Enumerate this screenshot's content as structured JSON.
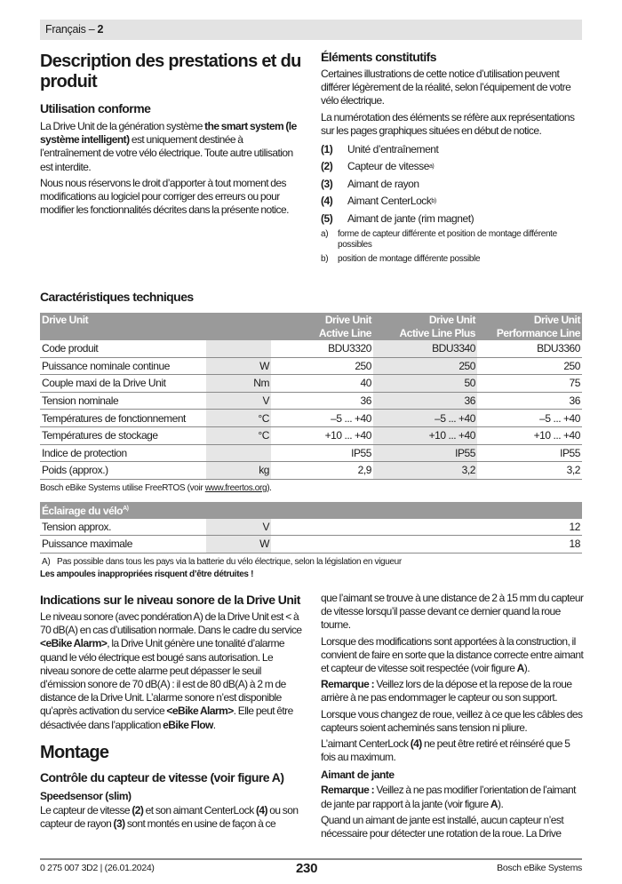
{
  "header": {
    "label": "Français – ",
    "page": "2"
  },
  "left_top": {
    "title": "Description des prestations et du produit",
    "usage_title": "Utilisation conforme",
    "usage_p1": [
      {
        "t": "La Drive Unit de la génération système "
      },
      {
        "t": "the smart system (le système intelligent)",
        "b": true
      },
      {
        "t": " est uniquement destinée à l’entraînement de votre vélo électrique. Toute autre utilisation est interdite."
      }
    ],
    "usage_p2": [
      {
        "t": "Nous nous réservons le droit d’apporter à tout moment des modifications au logiciel pour corriger des erreurs ou pour modifier les fonctionnalités décrites dans la présente notice."
      }
    ]
  },
  "right_top": {
    "title": "Éléments constitutifs",
    "p1": "Certaines illustrations de cette notice d’utilisation peuvent différer légèrement de la réalité, selon l’équipement de votre vélo électrique.",
    "p2": "La numérotation des éléments se réfère aux représentations sur les pages graphiques situées en début de notice.",
    "items": [
      {
        "num": "(1)",
        "label": "Unité d’entraînement",
        "sup": ""
      },
      {
        "num": "(2)",
        "label": "Capteur de vitesse ",
        "sup": "a)"
      },
      {
        "num": "(3)",
        "label": "Aimant de rayon",
        "sup": ""
      },
      {
        "num": "(4)",
        "label": "Aimant CenterLock ",
        "sup": "b)"
      },
      {
        "num": "(5)",
        "label": "Aimant de jante (rim magnet)",
        "sup": ""
      }
    ],
    "footnotes": [
      {
        "key": "a)",
        "text": "forme de capteur différente et position de montage différente possibles"
      },
      {
        "key": "b)",
        "text": "position de montage différente possible"
      }
    ]
  },
  "specs": {
    "title": "Caractéristiques techniques",
    "header": {
      "label": "Drive Unit",
      "cols": [
        [
          "Drive Unit",
          "Active Line"
        ],
        [
          "Drive Unit",
          "Active Line Plus"
        ],
        [
          "Drive Unit",
          "Performance Line"
        ]
      ]
    },
    "rows": [
      {
        "label": "Code produit",
        "unit": "",
        "values": [
          "BDU3320",
          "BDU3340",
          "BDU3360"
        ]
      },
      {
        "label": "Puissance nominale continue",
        "unit": "W",
        "values": [
          "250",
          "250",
          "250"
        ]
      },
      {
        "label": "Couple maxi de la Drive Unit",
        "unit": "Nm",
        "values": [
          "40",
          "50",
          "75"
        ]
      },
      {
        "label": "Tension nominale",
        "unit": "V",
        "values": [
          "36",
          "36",
          "36"
        ]
      },
      {
        "label": "Températures de fonctionnement",
        "unit": "°C",
        "values": [
          "–5 ... +40",
          "–5 ... +40",
          "–5 ... +40"
        ]
      },
      {
        "label": "Températures de stockage",
        "unit": "°C",
        "values": [
          "+10 ... +40",
          "+10 ... +40",
          "+10 ... +40"
        ]
      },
      {
        "label": "Indice de protection",
        "unit": "",
        "values": [
          "IP55",
          "IP55",
          "IP55"
        ]
      },
      {
        "label": "Poids (approx.)",
        "unit": "kg",
        "values": [
          "2,9",
          "3,2",
          "3,2"
        ]
      }
    ],
    "note_prefix": "Bosch eBike Systems utilise FreeRTOS (voir ",
    "note_link": "www.freertos.org",
    "note_suffix": ").",
    "lighting": {
      "header": "Éclairage du vélo",
      "header_sup": "A)",
      "rows": [
        {
          "label": "Tension approx.",
          "unit": "V",
          "value": "12"
        },
        {
          "label": "Puissance maximale",
          "unit": "W",
          "value": "18"
        }
      ],
      "footnote_key": "A)",
      "footnote": "Pas possible dans tous les pays via la batterie du vélo électrique, selon la législation en vigueur",
      "warning": "Les ampoules inappropriées risquent d’être détruites !"
    }
  },
  "noise": {
    "title": "Indications sur le niveau sonore de la Drive Unit",
    "p": [
      {
        "t": "Le niveau sonore (avec pondération A) de la Drive Unit est < à 70 dB(A) en cas d’utilisation normale. Dans le cadre du service "
      },
      {
        "t": "<eBike Alarm>",
        "b": true
      },
      {
        "t": ", la Drive Unit génère une tonalité d’alarme quand le vélo électrique est bougé sans autorisation. Le niveau sonore de cette alarme peut dépasser le seuil d’émission sonore de 70 dB(A) : il est de 80 dB(A) à 2 m de distance de la Drive Unit. L’alarme sonore n’est disponible qu’après activation du service "
      },
      {
        "t": "<eBike Alarm>",
        "b": true
      },
      {
        "t": ". Elle peut être désactivée dans l’application "
      },
      {
        "t": "eBike Flow",
        "b": true
      },
      {
        "t": "."
      }
    ]
  },
  "montage": {
    "title": "Montage",
    "subtitle": "Contrôle du capteur de vitesse (voir figure A)",
    "sub2": "Speedsensor (slim)",
    "p1": [
      {
        "t": "Le capteur de vitesse "
      },
      {
        "t": "(2)",
        "b": true
      },
      {
        "t": " et son aimant CenterLock "
      },
      {
        "t": "(4)",
        "b": true
      },
      {
        "t": " ou son capteur de rayon "
      },
      {
        "t": "(3)",
        "b": true
      },
      {
        "t": " sont montés en usine de façon à ce"
      }
    ]
  },
  "right_bottom": {
    "p1": [
      {
        "t": "que l’aimant se trouve à une distance de 2 à 15 mm du capteur de vitesse lorsqu’il passe devant ce dernier quand la roue tourne."
      }
    ],
    "p2": [
      {
        "t": "Lorsque des modifications sont apportées à la construction, il convient de faire en sorte que la distance correcte entre aimant et capteur de vitesse soit respectée (voir figure "
      },
      {
        "t": "A",
        "b": true
      },
      {
        "t": ")."
      }
    ],
    "p3": [
      {
        "t": "Remarque :",
        "b": true
      },
      {
        "t": " Veillez lors de la dépose et la repose de la roue arrière à ne pas endommager le capteur ou son support."
      }
    ],
    "p4": [
      {
        "t": "Lorsque vous changez de roue, veillez à ce que les câbles des capteurs soient acheminés sans tension ni pliure."
      }
    ],
    "p5": [
      {
        "t": "L’aimant CenterLock "
      },
      {
        "t": "(4)",
        "b": true
      },
      {
        "t": " ne peut être retiré et réinséré que 5 fois au maximum."
      }
    ],
    "rim_title": "Aimant de jante",
    "p6": [
      {
        "t": "Remarque :",
        "b": true
      },
      {
        "t": " Veillez à ne pas modifier l’orientation de l’aimant de jante par rapport à la jante (voir figure "
      },
      {
        "t": "A",
        "b": true
      },
      {
        "t": ")."
      }
    ],
    "p7": [
      {
        "t": "Quand un aimant de jante est installé, aucun capteur n’est nécessaire pour détecter une rotation de la roue. La Drive"
      }
    ]
  },
  "footer": {
    "doc": "0 275 007 3D2 | (26.01.2024)",
    "page": "230",
    "brand": "Bosch eBike Systems"
  }
}
